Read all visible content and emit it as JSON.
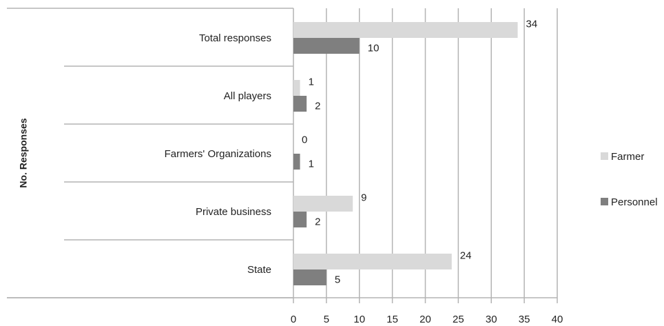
{
  "chart_data": {
    "type": "bar",
    "orientation": "horizontal",
    "y_axis_label": "No. Responses",
    "categories": [
      "Total responses",
      "All players",
      "Farmers' Organizations",
      "Private business",
      "State"
    ],
    "series": [
      {
        "name": "Farmer",
        "color": "#d9d9d9",
        "values": [
          34,
          1,
          0,
          9,
          24
        ]
      },
      {
        "name": "Personnel",
        "color": "#7f7f7f",
        "values": [
          10,
          2,
          1,
          2,
          5
        ]
      }
    ],
    "xlim": [
      0,
      40
    ],
    "xticks": [
      0,
      5,
      10,
      15,
      20,
      25,
      30,
      35,
      40
    ],
    "grid": true,
    "legend": "right"
  }
}
